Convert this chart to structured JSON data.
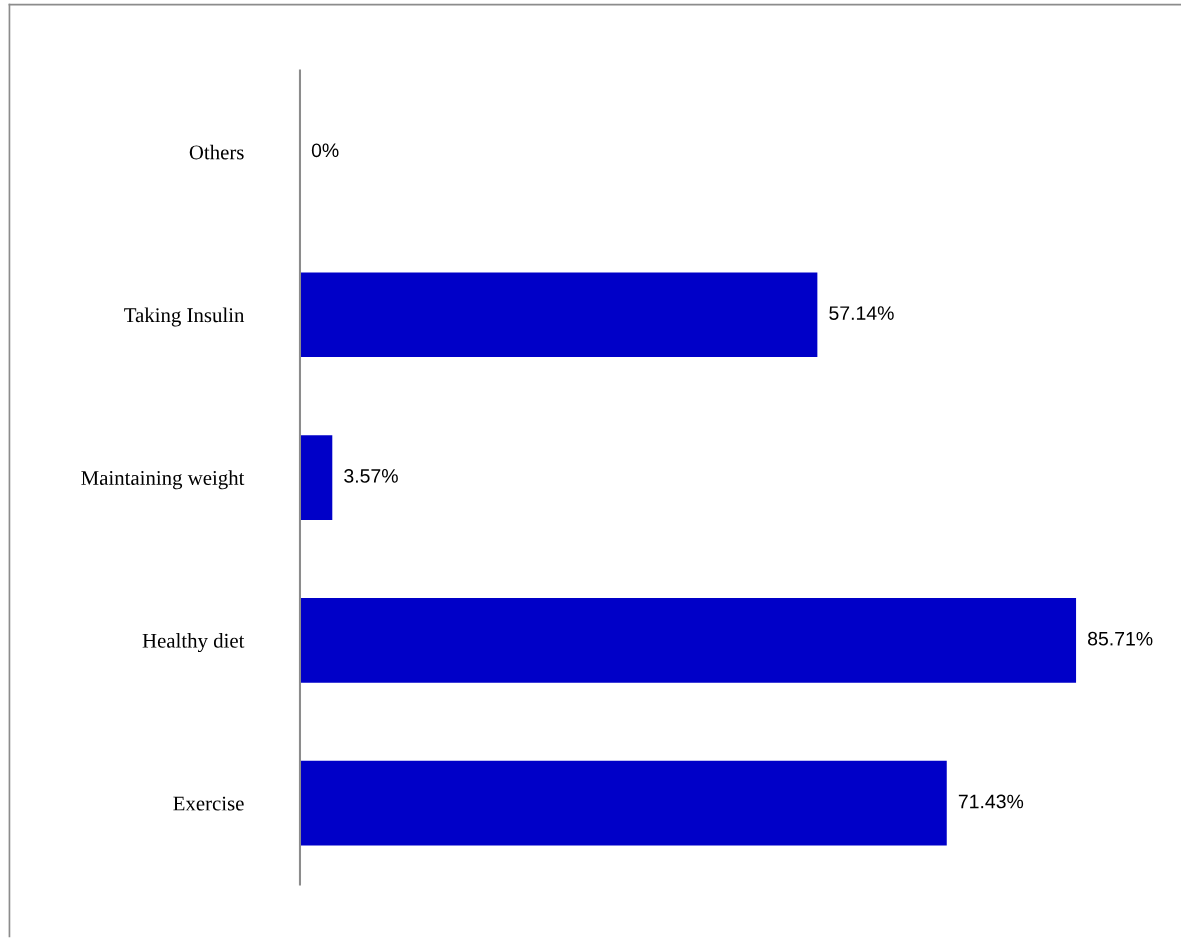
{
  "chart_data": {
    "type": "bar",
    "orientation": "horizontal",
    "categories": [
      "Others",
      "Taking Insulin",
      "Maintaining weight",
      "Healthy diet",
      "Exercise"
    ],
    "values": [
      0,
      57.14,
      3.57,
      85.71,
      71.43
    ],
    "value_labels": [
      "0%",
      "57.14%",
      "3.57%",
      "85.71%",
      "71.43%"
    ],
    "color": "#0000c8",
    "tick_labels": "y"
  }
}
